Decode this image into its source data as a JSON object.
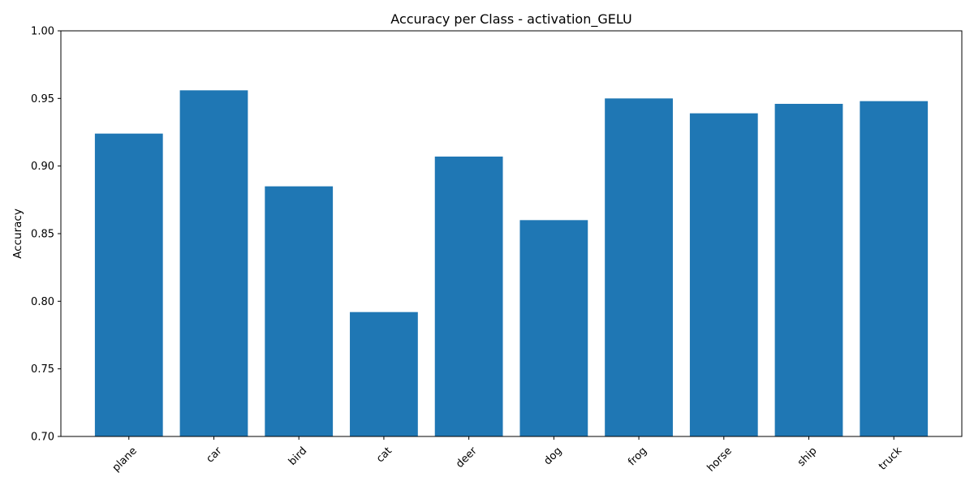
{
  "chart_data": {
    "type": "bar",
    "title": "Accuracy per Class - activation_GELU",
    "xlabel": "",
    "ylabel": "Accuracy",
    "categories": [
      "plane",
      "car",
      "bird",
      "cat",
      "deer",
      "dog",
      "frog",
      "horse",
      "ship",
      "truck"
    ],
    "values": [
      0.924,
      0.956,
      0.885,
      0.792,
      0.907,
      0.86,
      0.95,
      0.939,
      0.946,
      0.948
    ],
    "ylim": [
      0.7,
      1.0
    ],
    "yticks": [
      "0.70",
      "0.75",
      "0.80",
      "0.85",
      "0.90",
      "0.95",
      "1.00"
    ],
    "xtick_rotation_deg": 45,
    "grid": false,
    "bar_color": "#1f77b4"
  }
}
